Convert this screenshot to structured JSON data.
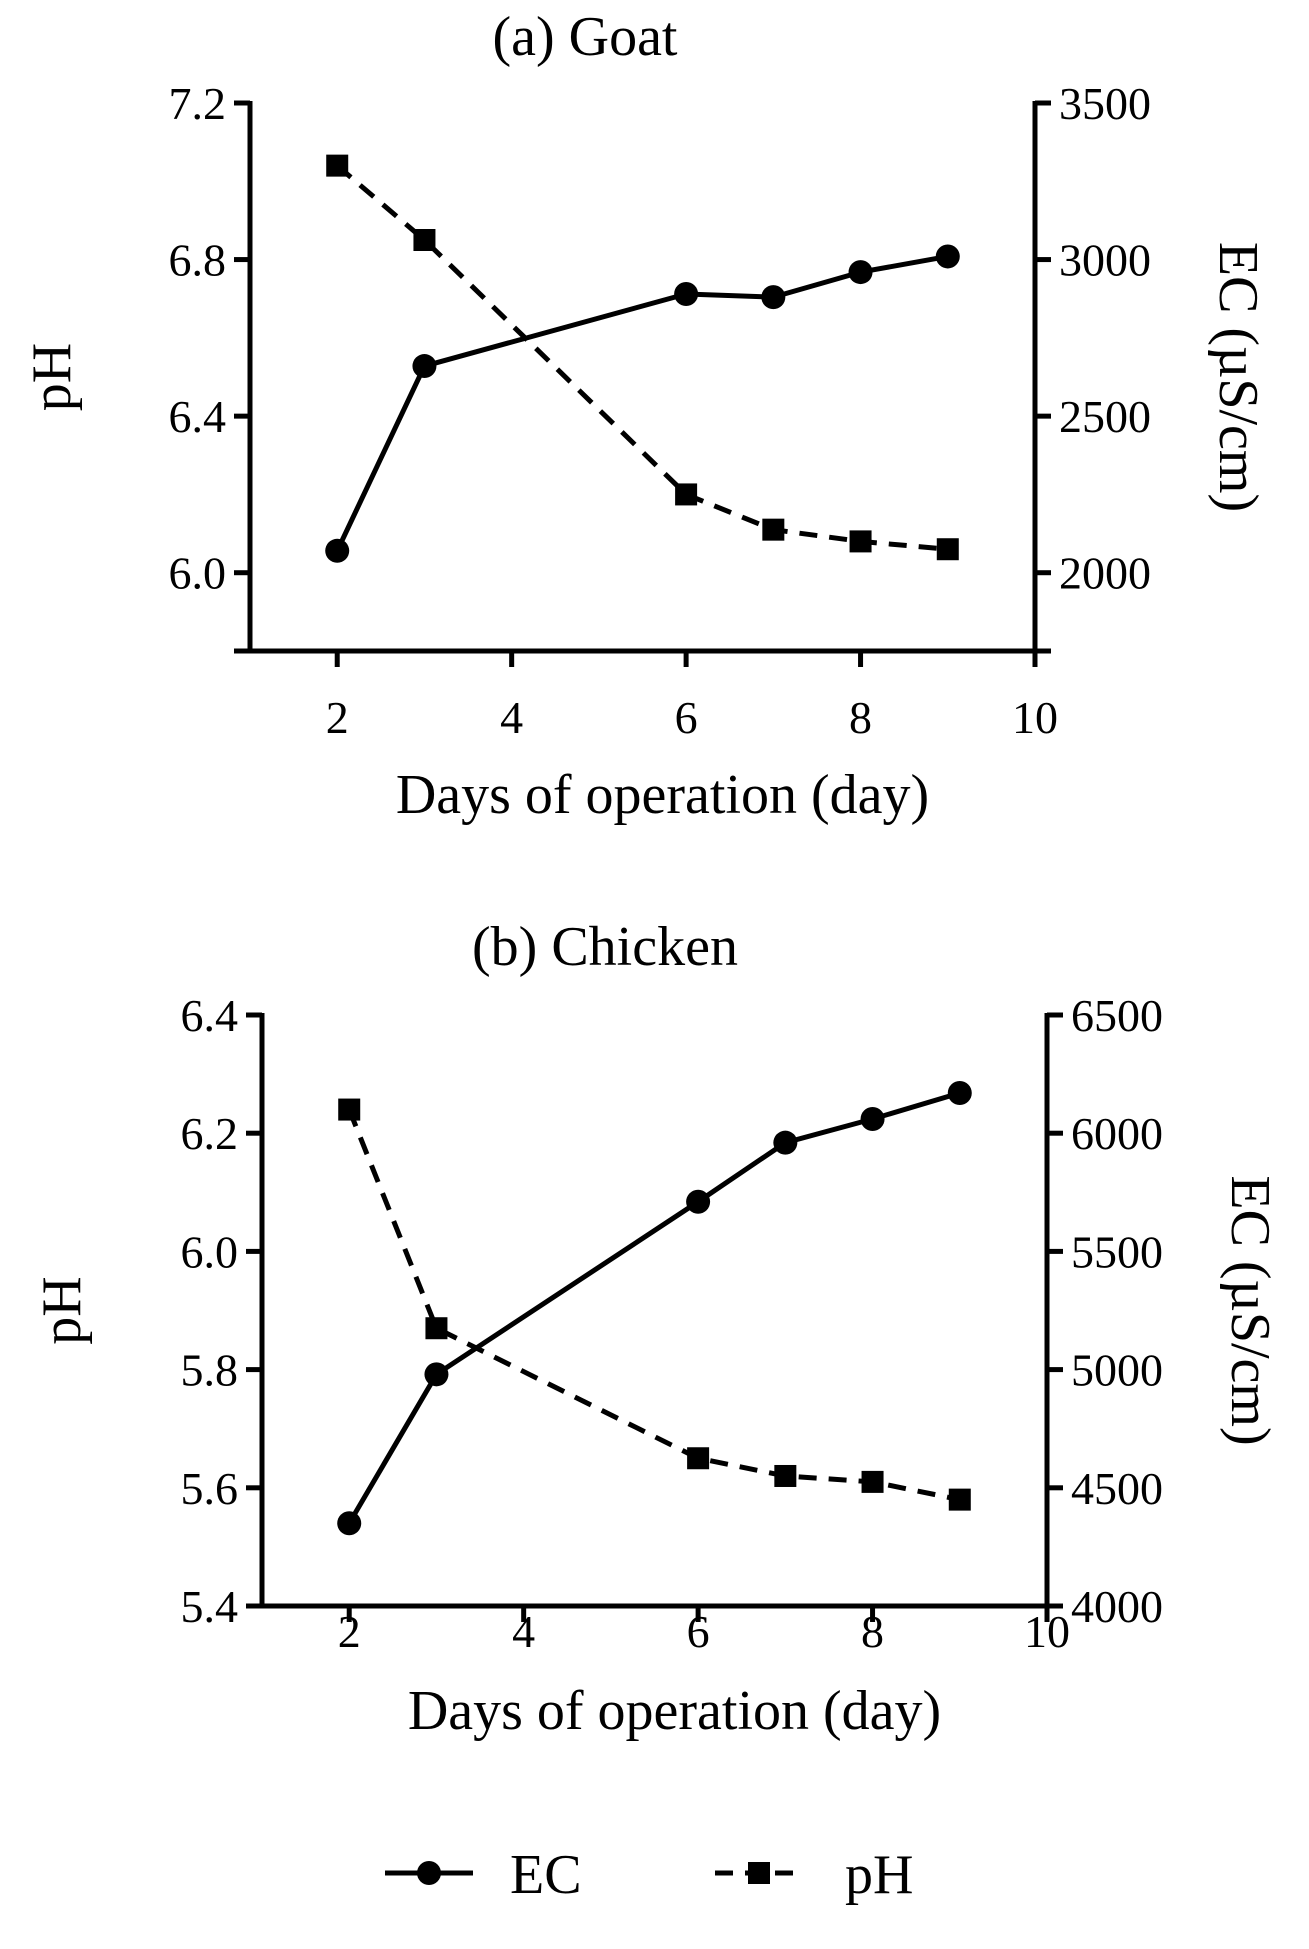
{
  "chart_data": [
    {
      "type": "line",
      "title": "(a)  Goat",
      "xlabel": "Days of operation (day)",
      "ylabel_left": "pH",
      "ylabel_right": "EC (µS/cm)",
      "xlim": [
        1,
        10
      ],
      "xticks": [
        2,
        4,
        6,
        8,
        10
      ],
      "ylim_left": [
        5.8,
        7.2
      ],
      "yticks_left": [
        "6.0",
        "6.4",
        "6.8",
        "7.2"
      ],
      "ylim_right": [
        1750,
        3500
      ],
      "yticks_right": [
        "2000",
        "2500",
        "3000",
        "3500"
      ],
      "x": [
        2,
        3,
        6,
        7,
        8,
        9
      ],
      "series": [
        {
          "name": "EC",
          "axis": "right",
          "style": "solid-circle",
          "values": [
            2070,
            2660,
            2890,
            2880,
            2960,
            3010
          ]
        },
        {
          "name": "pH",
          "axis": "left",
          "style": "dashed-square",
          "values": [
            7.04,
            6.85,
            6.2,
            6.11,
            6.08,
            6.06
          ]
        }
      ]
    },
    {
      "type": "line",
      "title": "(b)  Chicken",
      "xlabel": "Days of operation (day)",
      "ylabel_left": "pH",
      "ylabel_right": "EC (µS/cm)",
      "xlim": [
        1,
        10
      ],
      "xticks": [
        2,
        4,
        6,
        8,
        10
      ],
      "ylim_left": [
        5.4,
        6.4
      ],
      "yticks_left": [
        "5.4",
        "5.6",
        "5.8",
        "6.0",
        "6.2",
        "6.4"
      ],
      "ylim_right": [
        4000,
        6500
      ],
      "yticks_right": [
        "4000",
        "4500",
        "5000",
        "5500",
        "6000",
        "6500"
      ],
      "x": [
        2,
        3,
        6,
        7,
        8,
        9
      ],
      "series": [
        {
          "name": "EC",
          "axis": "right",
          "style": "solid-circle",
          "values": [
            4350,
            4980,
            5710,
            5960,
            6060,
            6170
          ]
        },
        {
          "name": "pH",
          "axis": "left",
          "style": "dashed-square",
          "values": [
            6.24,
            5.87,
            5.65,
            5.62,
            5.61,
            5.58
          ]
        }
      ]
    }
  ],
  "legend": {
    "placement": "bottom-center",
    "items": [
      {
        "label": "EC",
        "style": "solid-circle"
      },
      {
        "label": "pH",
        "style": "dashed-square"
      }
    ]
  }
}
